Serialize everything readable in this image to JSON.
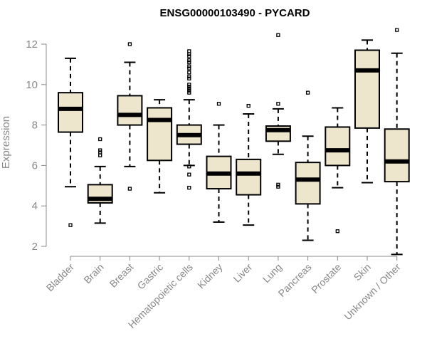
{
  "chart_data": {
    "type": "boxplot",
    "title": "ENSG00000103490 - PYCARD",
    "ylabel": "Expression",
    "ylim": [
      1.5,
      12.5
    ],
    "yticks": [
      2,
      4,
      6,
      8,
      10,
      12
    ],
    "box_fill": "#ede6cc",
    "categories": [
      "Bladder",
      "Brain",
      "Breast",
      "Gastric",
      "Hematopoietic cells",
      "Kidney",
      "Liver",
      "Lung",
      "Pancreas",
      "Prostate",
      "Skin",
      "Unknown / Other"
    ],
    "boxes": [
      {
        "name": "Bladder",
        "min": 4.95,
        "q1": 7.65,
        "median": 8.8,
        "q3": 9.6,
        "max": 11.3,
        "outliers": [
          3.05
        ]
      },
      {
        "name": "Brain",
        "min": 3.15,
        "q1": 4.15,
        "median": 4.35,
        "q3": 5.05,
        "max": 5.95,
        "outliers": [
          6.5,
          6.65,
          6.75,
          7.3
        ]
      },
      {
        "name": "Breast",
        "min": 5.95,
        "q1": 8.0,
        "median": 8.5,
        "q3": 9.45,
        "max": 11.1,
        "outliers": [
          4.85,
          12.0
        ]
      },
      {
        "name": "Gastric",
        "min": 4.65,
        "q1": 6.25,
        "median": 8.25,
        "q3": 8.85,
        "max": 9.25,
        "outliers": []
      },
      {
        "name": "Hematopoietic cells",
        "min": 6.0,
        "q1": 7.05,
        "median": 7.5,
        "q3": 8.0,
        "max": 9.25,
        "outliers": [
          4.9,
          5.55,
          5.95,
          9.6,
          9.7,
          9.8,
          9.9,
          10.0,
          10.3,
          10.4,
          10.6,
          10.8,
          10.9,
          11.1,
          11.2,
          11.4,
          11.5,
          11.65
        ]
      },
      {
        "name": "Kidney",
        "min": 3.2,
        "q1": 4.85,
        "median": 5.6,
        "q3": 6.45,
        "max": 8.0,
        "outliers": [
          9.05
        ]
      },
      {
        "name": "Liver",
        "min": 3.05,
        "q1": 4.55,
        "median": 5.6,
        "q3": 6.3,
        "max": 8.55,
        "outliers": [
          8.95
        ]
      },
      {
        "name": "Lung",
        "min": 6.55,
        "q1": 7.2,
        "median": 7.75,
        "q3": 7.95,
        "max": 8.8,
        "outliers": [
          4.95,
          5.05,
          9.05,
          12.45
        ]
      },
      {
        "name": "Pancreas",
        "min": 2.3,
        "q1": 4.1,
        "median": 5.3,
        "q3": 6.15,
        "max": 7.45,
        "outliers": [
          9.6
        ]
      },
      {
        "name": "Prostate",
        "min": 4.9,
        "q1": 6.0,
        "median": 6.75,
        "q3": 7.9,
        "max": 8.85,
        "outliers": [
          2.75
        ]
      },
      {
        "name": "Skin",
        "min": 5.15,
        "q1": 7.85,
        "median": 10.7,
        "q3": 11.7,
        "max": 12.2,
        "outliers": []
      },
      {
        "name": "Unknown / Other",
        "min": 1.6,
        "q1": 5.2,
        "median": 6.2,
        "q3": 7.8,
        "max": 11.55,
        "outliers": [
          12.7
        ]
      }
    ]
  }
}
